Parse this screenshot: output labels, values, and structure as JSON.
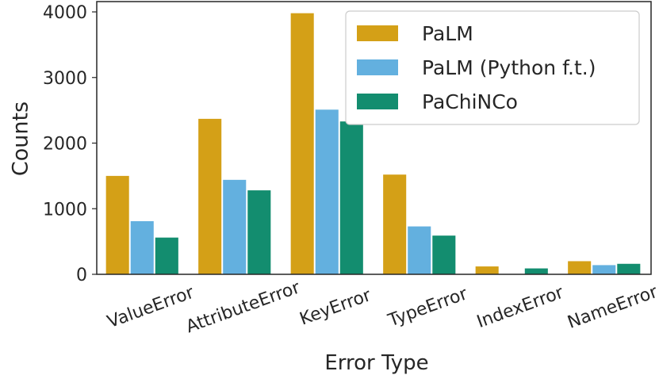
{
  "chart_data": {
    "type": "bar",
    "xlabel": "Error Type",
    "ylabel": "Counts",
    "ylim": [
      0,
      4000
    ],
    "yticks": [
      0,
      1000,
      2000,
      3000,
      4000
    ],
    "categories": [
      "ValueError",
      "AttributeError",
      "KeyError",
      "TypeError",
      "IndexError",
      "NameError"
    ],
    "series": [
      {
        "name": "PaLM",
        "color": "#d4a017",
        "values": [
          1500,
          2370,
          3980,
          1520,
          120,
          200
        ]
      },
      {
        "name": "PaLM (Python f.t.)",
        "color": "#63b0df",
        "values": [
          810,
          1440,
          2510,
          730,
          0,
          140
        ]
      },
      {
        "name": "PaChiNCo",
        "color": "#138d6f",
        "values": [
          560,
          1280,
          2330,
          590,
          90,
          160
        ]
      }
    ],
    "legend_position": "top-right",
    "grid": false
  }
}
